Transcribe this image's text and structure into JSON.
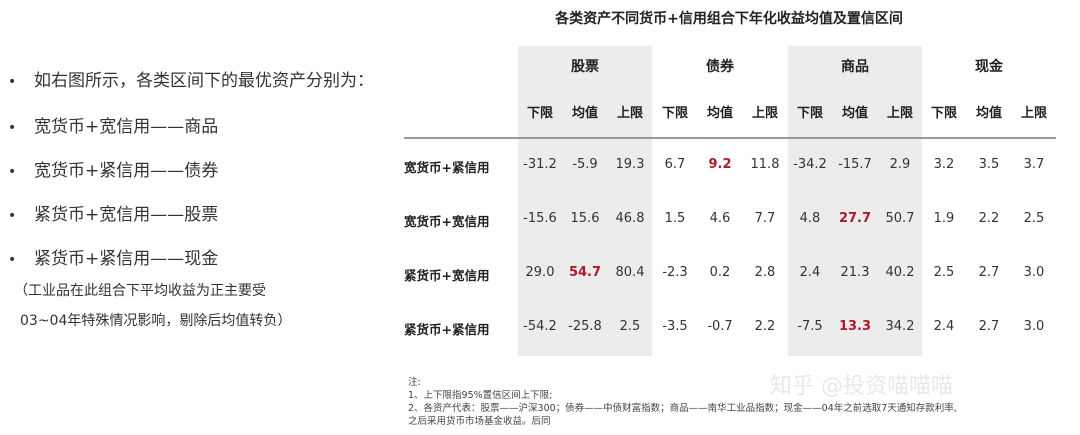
{
  "title": "各类资产不同货币+信用组合下年化收益均值及置信区间",
  "bullets": [
    "如右图所示，各类区间下的最优资产分别为：",
    "宽货币+宽信用——商品",
    "宽货币+紧信用——债券",
    "紧货币+宽信用——股票",
    "紧货币+紧信用——现金"
  ],
  "bullet_symbol": "•",
  "note_lines": [
    "（工业品在此组合下平均收益为正主要受",
    "03~04年特殊情况影响，剔除后均值转负）"
  ],
  "table": {
    "groups": [
      "股票",
      "债券",
      "商品",
      "现金"
    ],
    "sub_headers": [
      "下限",
      "均值",
      "上限"
    ],
    "rows": [
      {
        "label": "宽货币+紧信用",
        "values": [
          "-31.2",
          "-5.9",
          "19.3",
          "6.7",
          "9.2",
          "11.8",
          "-34.2",
          "-15.7",
          "2.9",
          "3.2",
          "3.5",
          "3.7"
        ],
        "highlight_index": 4
      },
      {
        "label": "宽货币+宽信用",
        "values": [
          "-15.6",
          "15.6",
          "46.8",
          "1.5",
          "4.6",
          "7.7",
          "4.8",
          "27.7",
          "50.7",
          "1.9",
          "2.2",
          "2.5"
        ],
        "highlight_index": 7
      },
      {
        "label": "紧货币+宽信用",
        "values": [
          "29.0",
          "54.7",
          "80.4",
          "-2.3",
          "0.2",
          "2.8",
          "2.4",
          "21.3",
          "40.2",
          "2.5",
          "2.7",
          "3.0"
        ],
        "highlight_index": 1
      },
      {
        "label": "紧货币+紧信用",
        "values": [
          "-54.2",
          "-25.8",
          "2.5",
          "-3.5",
          "-0.7",
          "2.2",
          "-7.5",
          "13.3",
          "34.2",
          "2.4",
          "2.7",
          "3.0"
        ],
        "highlight_index": 7
      }
    ],
    "highlight_color": "#b0182a",
    "shade_color": "#ececec"
  },
  "footnotes": [
    "注:",
    "1、上下限指95%置信区间上下限;",
    "2、各资产代表：股票——沪深300；债券——中债财富指数；商品——南华工业品指数；现金——04年之前选取7天通知存款利率,",
    "之后采用货币市场基金收益。后同"
  ],
  "watermark": "知乎 @投资喵喵喵"
}
